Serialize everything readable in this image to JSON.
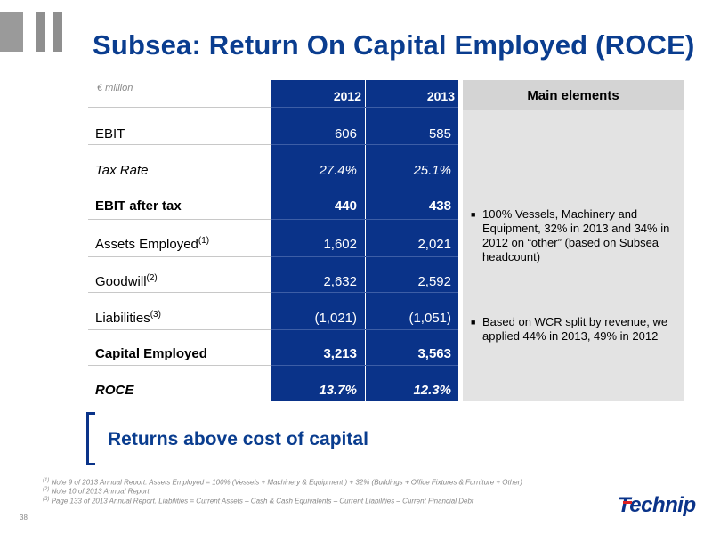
{
  "title": "Subsea: Return On Capital Employed (ROCE)",
  "unit": "€ million",
  "columns": [
    "2012",
    "2013"
  ],
  "rows": [
    {
      "label": "EBIT",
      "sup": "",
      "v2012": "606",
      "v2013": "585"
    },
    {
      "label": "Tax Rate",
      "sup": "",
      "v2012": "27.4%",
      "v2013": "25.1%"
    },
    {
      "label": "EBIT after tax",
      "sup": "",
      "v2012": "440",
      "v2013": "438"
    },
    {
      "label": "Assets Employed",
      "sup": "(1)",
      "v2012": "1,602",
      "v2013": "2,021"
    },
    {
      "label": "Goodwill",
      "sup": "(2)",
      "v2012": "2,632",
      "v2013": "2,592"
    },
    {
      "label": "Liabilities",
      "sup": "(3)",
      "v2012": "(1,021)",
      "v2013": "(1,051)"
    },
    {
      "label": "Capital Employed",
      "sup": "",
      "v2012": "3,213",
      "v2013": "3,563"
    },
    {
      "label": "ROCE",
      "sup": "",
      "v2012": "13.7%",
      "v2013": "12.3%"
    }
  ],
  "main_elements": {
    "title": "Main elements",
    "bullets": [
      "100% Vessels, Machinery and Equipment, 32% in 2013 and 34% in 2012 on “other” (based on Subsea headcount)",
      "Based on WCR split by revenue, we applied 44% in 2013, 49% in 2012"
    ]
  },
  "returns": "Returns above cost of capital",
  "notes": [
    {
      "sup": "(1)",
      "text": "Note 9 of 2013 Annual Report. Assets Employed = 100% (Vessels + Machinery & Equipment ) + 32% (Buildings + Office Fixtures & Furniture + Other)"
    },
    {
      "sup": "(2)",
      "text": "Note 10 of 2013 Annual Report"
    },
    {
      "sup": "(3)",
      "text": "Page 133 of 2013 Annual Report. Liabilities = Current Assets – Cash & Cash Equivalents – Current Liabilities – Current Financial Debt"
    }
  ],
  "page_number": "38",
  "logo": "Technip",
  "colors": {
    "brand_blue": "#0a3389",
    "title_blue": "#0a3d8f",
    "panel_gray": "#e3e3e3"
  }
}
